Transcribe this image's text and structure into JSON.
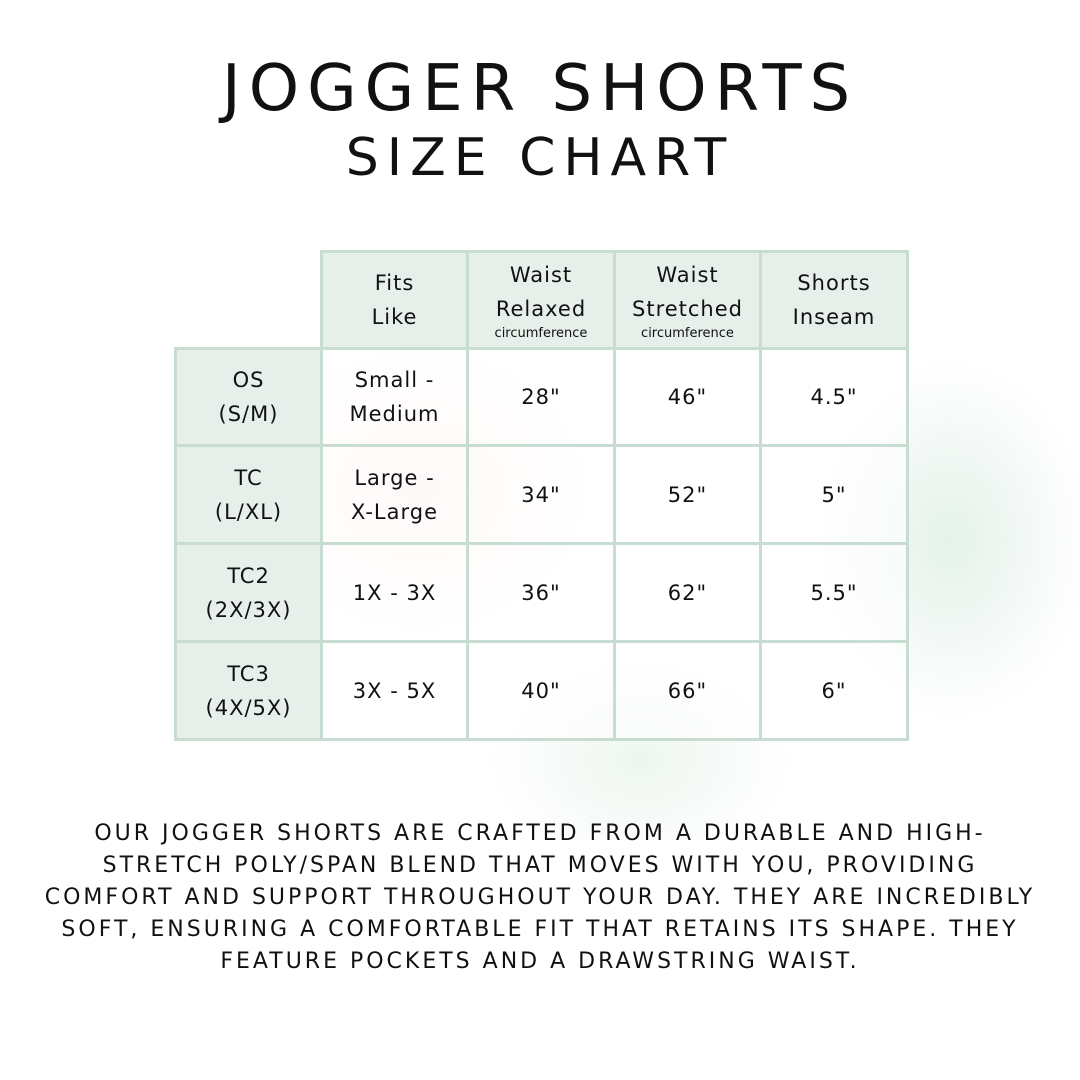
{
  "title": {
    "line1": "JOGGER SHORTS",
    "line2": "SIZE CHART"
  },
  "table": {
    "headers": [
      {
        "line1": "Fits",
        "line2": "Like",
        "sub": ""
      },
      {
        "line1": "Waist",
        "line2": "Relaxed",
        "sub": "circumference"
      },
      {
        "line1": "Waist",
        "line2": "Stretched",
        "sub": "circumference"
      },
      {
        "line1": "Shorts",
        "line2": "Inseam",
        "sub": ""
      }
    ],
    "rows": [
      {
        "size": "OS",
        "alt": "(S/M)",
        "fits1": "Small -",
        "fits2": "Medium",
        "relaxed": "28\"",
        "stretched": "46\"",
        "inseam": "4.5\""
      },
      {
        "size": "TC",
        "alt": "(L/XL)",
        "fits1": "Large -",
        "fits2": "X-Large",
        "relaxed": "34\"",
        "stretched": "52\"",
        "inseam": "5\""
      },
      {
        "size": "TC2",
        "alt": "(2X/3X)",
        "fits1": "1X - 3X",
        "fits2": "",
        "relaxed": "36\"",
        "stretched": "62\"",
        "inseam": "5.5\""
      },
      {
        "size": "TC3",
        "alt": "(4X/5X)",
        "fits1": "3X - 5X",
        "fits2": "",
        "relaxed": "40\"",
        "stretched": "66\"",
        "inseam": "6\""
      }
    ]
  },
  "description": "Our jogger shorts are crafted from a durable and high-stretch poly/span blend that moves with you, providing comfort and support throughout your day. They are incredibly soft, ensuring a comfortable fit that retains its shape. They feature pockets and a drawstring waist.",
  "colors": {
    "header_bg": "#e6efe9",
    "border": "#c8ddd1"
  }
}
